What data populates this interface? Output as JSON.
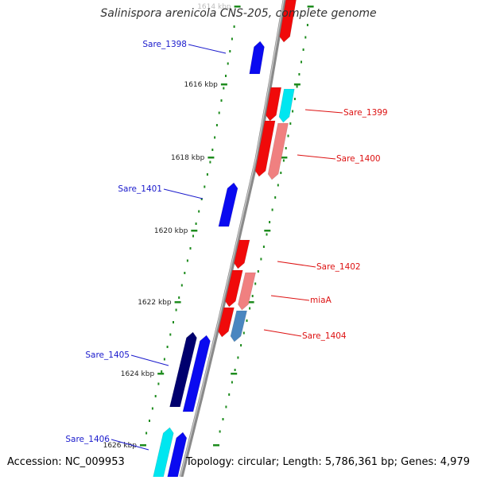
{
  "title": "Salinispora arenicola CNS-205, complete genome",
  "footer": {
    "accession": "Accession: NC_009953",
    "topology": "Topology: circular; Length: 5,786,361 bp; Genes: 4,979"
  },
  "colors": {
    "backbone": "#8a8a8a",
    "ticks": "#1e8c1e",
    "plus_strand_labels": "#1a1acc",
    "minus_strand_labels": "#dd1111",
    "blue": "#0a0af0",
    "navy": "#00006e",
    "cyan": "#00e6f0",
    "red": "#f00a0a",
    "pink": "#f08080",
    "steelblue": "#4a86c0"
  },
  "tick_labels": [
    {
      "id": "1614",
      "text": "1614 kbp"
    },
    {
      "id": "1616",
      "text": "1616 kbp"
    },
    {
      "id": "1618",
      "text": "1618 kbp"
    },
    {
      "id": "1620",
      "text": "1620 kbp"
    },
    {
      "id": "1622",
      "text": "1622 kbp"
    },
    {
      "id": "1624",
      "text": "1624 kbp"
    },
    {
      "id": "1626",
      "text": "1626 kbp"
    }
  ],
  "gene_labels": [
    {
      "id": "Sare_1398",
      "text": "Sare_1398",
      "strand": "plus"
    },
    {
      "id": "Sare_1399",
      "text": "Sare_1399",
      "strand": "minus"
    },
    {
      "id": "Sare_1400",
      "text": "Sare_1400",
      "strand": "minus"
    },
    {
      "id": "Sare_1401",
      "text": "Sare_1401",
      "strand": "plus"
    },
    {
      "id": "Sare_1402",
      "text": "Sare_1402",
      "strand": "minus"
    },
    {
      "id": "miaA",
      "text": "miaA",
      "strand": "minus"
    },
    {
      "id": "Sare_1404",
      "text": "Sare_1404",
      "strand": "minus"
    },
    {
      "id": "Sare_1405",
      "text": "Sare_1405",
      "strand": "plus"
    },
    {
      "id": "Sare_1406",
      "text": "Sare_1406",
      "strand": "plus"
    }
  ]
}
